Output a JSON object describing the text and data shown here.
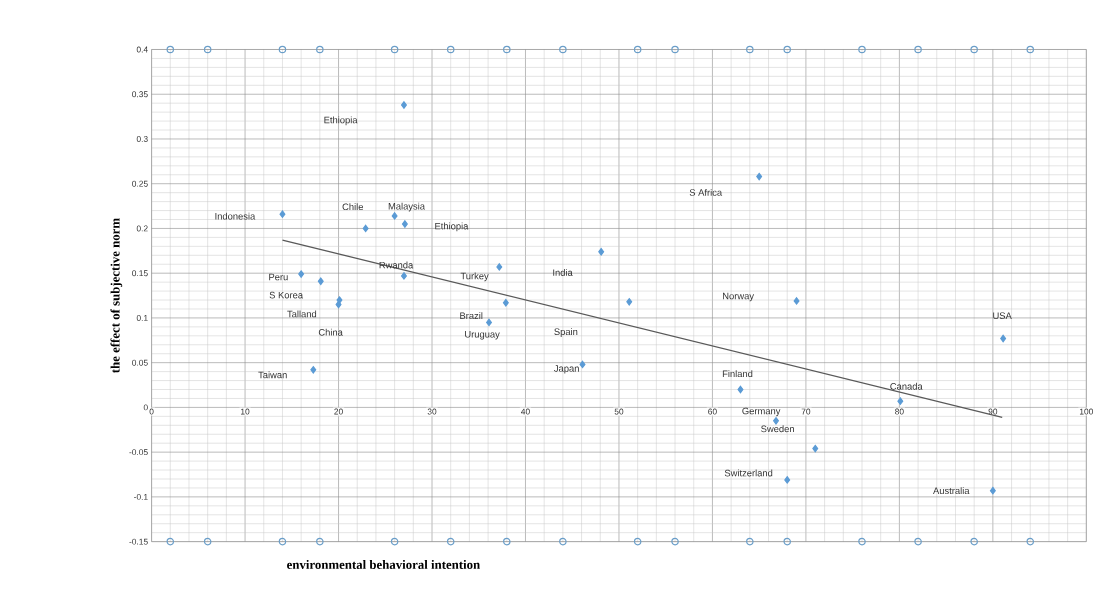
{
  "chart_data": {
    "type": "scatter",
    "xlabel": "environmental behavioral intention",
    "ylabel": "the effect  of  subjective norm",
    "xlim": [
      0,
      100
    ],
    "ylim": [
      -0.15,
      0.4
    ],
    "xticks": [
      0,
      10,
      20,
      30,
      40,
      50,
      60,
      70,
      80,
      90,
      100
    ],
    "yticks": [
      -0.15,
      -0.1,
      -0.05,
      0,
      0.05,
      0.1,
      0.15,
      0.2,
      0.25,
      0.3,
      0.35,
      0.4
    ],
    "grid": true,
    "series": [
      {
        "marker": "diamond",
        "color": "#5b9bd5",
        "x": [
          27,
          14,
          22.9,
          26,
          27.1,
          27,
          16,
          18.1,
          20.1,
          20,
          17.3,
          37.2,
          37.9,
          36.1,
          48.1,
          51.1,
          46.1,
          65,
          69,
          91.1,
          63,
          80.1,
          66.8,
          71,
          68,
          90
        ],
        "values": [
          0.338,
          0.216,
          0.2,
          0.214,
          0.205,
          0.147,
          0.149,
          0.141,
          0.12,
          0.115,
          0.042,
          0.157,
          0.117,
          0.095,
          0.174,
          0.118,
          0.048,
          0.258,
          0.119,
          0.077,
          0.02,
          0.007,
          -0.015,
          -0.046,
          -0.081,
          -0.093
        ]
      },
      {
        "type": "line",
        "marker": "none",
        "color": "#595959",
        "x": [
          14,
          91
        ],
        "values": [
          0.187,
          -0.011
        ]
      },
      {
        "marker": "circle",
        "color": "#6a9ec9",
        "x": [
          2,
          6,
          14,
          18,
          26,
          32,
          38,
          44,
          52,
          56,
          64,
          68,
          76,
          82,
          88,
          94
        ],
        "values": [
          0.4,
          0.4,
          0.4,
          0.4,
          0.4,
          0.4,
          0.4,
          0.4,
          0.4,
          0.4,
          0.4,
          0.4,
          0.4,
          0.4,
          0.4,
          0.4
        ]
      },
      {
        "marker": "circle",
        "color": "#6a9ec9",
        "x": [
          2,
          6,
          14,
          18,
          26,
          32,
          38,
          44,
          52,
          56,
          64,
          68,
          76,
          82,
          88,
          94
        ],
        "values": [
          -0.15,
          -0.15,
          -0.15,
          -0.15,
          -0.15,
          -0.15,
          -0.15,
          -0.15,
          -0.15,
          -0.15,
          -0.15,
          -0.15,
          -0.15,
          -0.15,
          -0.15,
          -0.15
        ]
      }
    ],
    "annotations": [
      "Ethiopia",
      {
        "text": "Indonesia",
        "x": 14,
        "y": 0.216
      },
      {
        "text": "Chile",
        "x": 22.9,
        "y": 0.2
      },
      {
        "text": "Malaysia",
        "x": 26,
        "y": 0.214
      },
      "Ethiopia",
      {
        "text": "Rwanda",
        "x": 27,
        "y": 0.147
      },
      {
        "text": "Peru",
        "x": 16,
        "y": 0.149
      },
      {
        "text": "S Korea",
        "x": 18.1,
        "y": 0.141
      },
      {
        "text": "Talland",
        "x": 20.1,
        "y": 0.12
      },
      {
        "text": "China",
        "x": 20,
        "y": 0.115
      },
      {
        "text": "Taiwan",
        "x": 17.3,
        "y": 0.042
      },
      {
        "text": "Turkey",
        "x": 37.2,
        "y": 0.157
      },
      {
        "text": "Brazil",
        "x": 37.9,
        "y": 0.117
      },
      {
        "text": "Uruguay",
        "x": 36.1,
        "y": 0.095
      },
      "India",
      "Spain",
      {
        "text": "Japan",
        "x": 46.1,
        "y": 0.048
      },
      "S Africa",
      "Norway",
      {
        "text": "USA",
        "x": 91.1,
        "y": 0.077
      },
      {
        "text": "Finland",
        "x": 63,
        "y": 0.02
      },
      {
        "text": "Canada",
        "x": 80.1,
        "y": 0.007
      },
      {
        "text": "Germany",
        "x": 66.8,
        "y": -0.015
      },
      {
        "text": "Sweden",
        "x": 71,
        "y": -0.046
      },
      {
        "text": "Switzerland",
        "x": 68,
        "y": -0.081
      },
      {
        "text": "Australia",
        "x": 90,
        "y": -0.093
      }
    ]
  }
}
